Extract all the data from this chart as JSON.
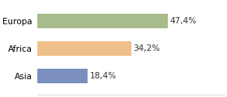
{
  "categories": [
    "Europa",
    "Africa",
    "Asia"
  ],
  "values": [
    47.4,
    34.2,
    18.4
  ],
  "labels": [
    "47,4%",
    "34,2%",
    "18,4%"
  ],
  "bar_colors": [
    "#a8bb8a",
    "#f0c08a",
    "#7a8fbf"
  ],
  "background_color": "#ffffff",
  "xlim": [
    0,
    68
  ],
  "bar_height": 0.52,
  "label_fontsize": 7.5,
  "tick_fontsize": 7.5,
  "figsize": [
    2.8,
    1.2
  ],
  "dpi": 100
}
